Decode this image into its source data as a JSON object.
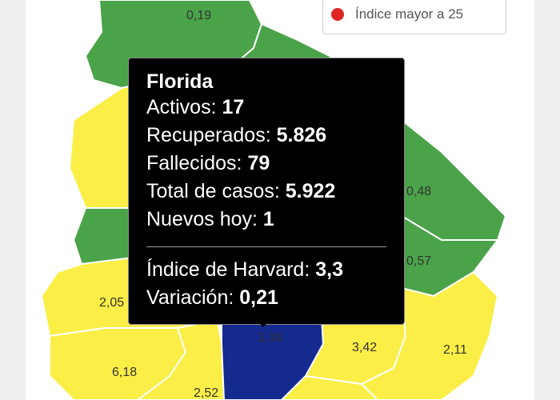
{
  "map": {
    "colors": {
      "green": "#4aa349",
      "yellow": "#fbee46",
      "navy": "#142a8f",
      "border": "#ffffff"
    },
    "labels": [
      {
        "id": "artigas",
        "text": "0,19"
      },
      {
        "id": "cerro-largo",
        "text": "0,48"
      },
      {
        "id": "treinta-y-tres",
        "text": "0,57"
      },
      {
        "id": "soriano",
        "text": "2,05"
      },
      {
        "id": "colonia",
        "text": "6,18"
      },
      {
        "id": "san-jose",
        "text": "2,52"
      },
      {
        "id": "florida",
        "text": "3,30"
      },
      {
        "id": "lavalleja",
        "text": "3,42"
      },
      {
        "id": "rocha",
        "text": "2,11"
      }
    ]
  },
  "legend": {
    "items": [
      {
        "color": "#f58a22",
        "text": ""
      },
      {
        "color": "#e02424",
        "text": "Índice mayor a 25"
      }
    ]
  },
  "tooltip": {
    "title": "Florida",
    "rows": [
      {
        "label": "Activos: ",
        "value": "17"
      },
      {
        "label": "Recuperados: ",
        "value": "5.826"
      },
      {
        "label": "Fallecidos: ",
        "value": "79"
      },
      {
        "label": "Total de casos: ",
        "value": "5.922"
      },
      {
        "label": "Nuevos hoy: ",
        "value": "1"
      }
    ],
    "harvard": {
      "label": "Índice de Harvard: ",
      "value": "3,3"
    },
    "variation": {
      "label": "Variación: ",
      "value": "0,21"
    }
  }
}
